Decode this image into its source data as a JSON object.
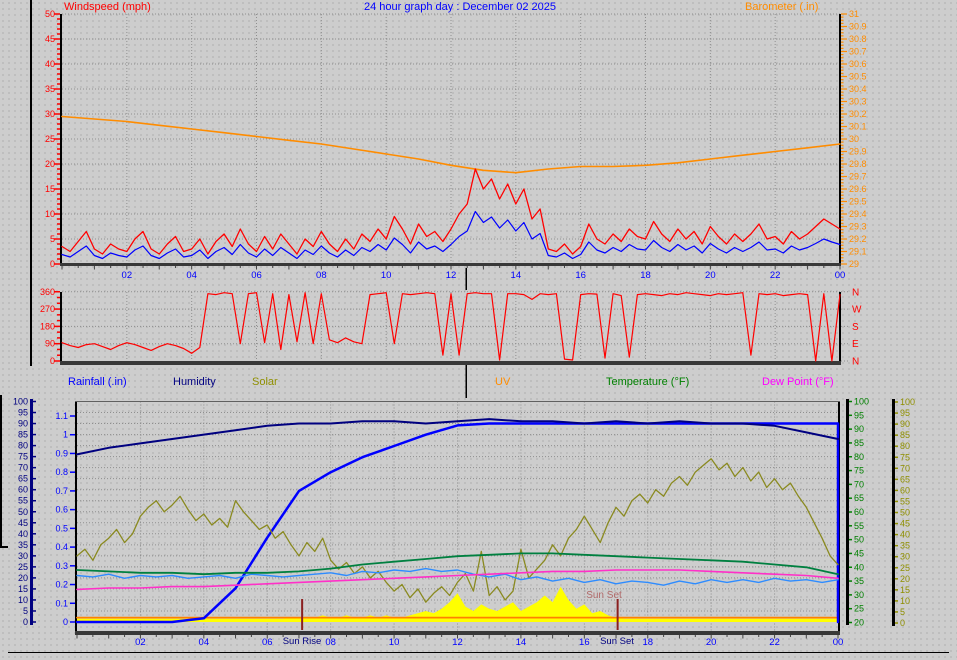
{
  "header": {
    "windspeed_label": "Windspeed (mph)",
    "title": "24 hour graph day : December 02 2025",
    "barometer_label": "Barometer (.in)",
    "title_color": "#0000ff"
  },
  "section_labels": [
    {
      "id": "rainfall",
      "text": "Rainfall (.in)",
      "color": "#0000ff"
    },
    {
      "id": "humidity",
      "text": "Humidity",
      "color": "#000080"
    },
    {
      "id": "solar",
      "text": "Solar",
      "color": "#8f8f00"
    },
    {
      "id": "uv",
      "text": "UV",
      "color": "#ff8c00"
    },
    {
      "id": "temperature",
      "text": "Temperature (°F)",
      "color": "#008000"
    },
    {
      "id": "dewpoint",
      "text": "Dew Point (°F)",
      "color": "#ff00ff"
    }
  ],
  "time_axis": {
    "color": "#0000ff",
    "tick_labels": [
      "02",
      "04",
      "06",
      "08",
      "10",
      "12",
      "14",
      "16",
      "18",
      "20",
      "22",
      "00"
    ],
    "tick_hours": [
      2,
      4,
      6,
      8,
      10,
      12,
      14,
      16,
      18,
      20,
      22,
      24
    ]
  },
  "sun": {
    "rise_label": "Sun Rise",
    "set_label": "Sun Set",
    "inside_set_label": "Sun Set",
    "label_color": "#000080",
    "inside_label_color": "#b06a6a",
    "marker_color": "#8b2020",
    "rise_hour": 7.1,
    "set_hour": 17.05
  },
  "chart_data": [
    {
      "type": "line",
      "title": "24 hour graph day : December 02 2025",
      "x": {
        "range_hours": [
          0,
          24
        ],
        "grid_step_hours": 2
      },
      "axes": {
        "left": {
          "label": "Windspeed (mph)",
          "color": "#ff0000",
          "min": 0,
          "max": 50,
          "ticks": [
            "50",
            "45",
            "40",
            "35",
            "30",
            "25",
            "20",
            "15",
            "10",
            "5",
            "0"
          ]
        },
        "right": {
          "label": "Barometer (.in)",
          "color": "#ff8c00",
          "min": 29,
          "max": 31,
          "ticks": [
            "31",
            "30.9",
            "30.8",
            "30.7",
            "30.6",
            "30.5",
            "30.4",
            "30.3",
            "30.2",
            "30.1",
            "30",
            "29.9",
            "29.8",
            "29.7",
            "29.6",
            "29.5",
            "29.4",
            "29.3",
            "29.2",
            "29.1",
            "29"
          ]
        }
      },
      "series": [
        {
          "name": "barometer",
          "color": "#ff8c00",
          "axis": "right",
          "width": 1.6,
          "values": [
            30.18,
            30.16,
            30.14,
            30.11,
            30.08,
            30.05,
            30.02,
            29.99,
            29.96,
            29.92,
            29.88,
            29.84,
            29.79,
            29.75,
            29.73,
            29.76,
            29.78,
            29.78,
            29.79,
            29.81,
            29.84,
            29.87,
            29.9,
            29.93,
            29.96
          ]
        },
        {
          "name": "windspeed-average",
          "color": "#0000ff",
          "axis": "left",
          "width": 1.2,
          "values": [
            1.9,
            1.4,
            2.5,
            3.6,
            1.7,
            1.1,
            2.2,
            1.7,
            1.4,
            2.8,
            3.6,
            1.7,
            1.1,
            2.2,
            3,
            1.4,
            1.7,
            2.8,
            1.1,
            2.5,
            3.3,
            1.9,
            3.9,
            2.2,
            1.4,
            3,
            1.7,
            3.3,
            2.2,
            1.1,
            2.8,
            1.9,
            3.6,
            2.2,
            1.4,
            2.8,
            1.7,
            3.3,
            2.5,
            3.9,
            2.8,
            5.2,
            3.9,
            2.2,
            4.4,
            3,
            3.6,
            2.5,
            3.9,
            5.5,
            6.6,
            10.5,
            8.3,
            9.4,
            7.2,
            8.8,
            6.6,
            8.3,
            5,
            6.1,
            1.7,
            1.4,
            2.2,
            1.1,
            1.9,
            4.4,
            2.8,
            2.2,
            3.3,
            2.5,
            3.9,
            3,
            2.8,
            4.7,
            3.3,
            2.5,
            3.9,
            2.8,
            3.6,
            2.2,
            4.1,
            3,
            2.2,
            3.3,
            2.5,
            3.3,
            4.4,
            2.8,
            3,
            2.2,
            3.6,
            2.8,
            3.3,
            4.1,
            5,
            4.4,
            3.9
          ]
        },
        {
          "name": "windspeed-gust",
          "color": "#ff0000",
          "axis": "left",
          "width": 1.3,
          "values": [
            3.5,
            2.5,
            4.5,
            6.5,
            3,
            2,
            4,
            3,
            2.5,
            5,
            6.5,
            3,
            2,
            4,
            5.5,
            2.5,
            3,
            5,
            2,
            4.5,
            6,
            3.5,
            7,
            4,
            2.5,
            5.5,
            3,
            6,
            4,
            2,
            5,
            3.5,
            6.5,
            4,
            2.5,
            5,
            3,
            6,
            4.5,
            7,
            5,
            9.5,
            7,
            4,
            8,
            5.5,
            6.5,
            4.5,
            7,
            10,
            12,
            19,
            15,
            17,
            13,
            16,
            12,
            15,
            9,
            11,
            3,
            2.5,
            4,
            2,
            3.5,
            8,
            5,
            4,
            6,
            4.5,
            7,
            5.5,
            5,
            8.5,
            6,
            4.5,
            7,
            5,
            6.5,
            4,
            7.5,
            5.5,
            4,
            6,
            4.5,
            6,
            8,
            5,
            5.5,
            4,
            6.5,
            5,
            6,
            7.5,
            9,
            8,
            7
          ]
        }
      ]
    },
    {
      "type": "line",
      "x": {
        "range_hours": [
          0,
          24
        ],
        "grid_step_hours": 2
      },
      "axes": {
        "left": {
          "color": "#ff0000",
          "min": 0,
          "max": 360,
          "ticks": [
            "360",
            "270",
            "180",
            "90",
            "0"
          ],
          "tick_values": [
            360,
            270,
            180,
            90,
            0
          ]
        },
        "right": {
          "color": "#ff0000",
          "ticks": [
            "N",
            "W",
            "S",
            "E",
            "N"
          ],
          "tick_values": [
            360,
            270,
            180,
            90,
            0
          ]
        }
      },
      "series": [
        {
          "name": "wind-direction",
          "color": "#ff0000",
          "width": 1.2,
          "values": [
            95,
            80,
            70,
            85,
            90,
            75,
            60,
            80,
            95,
            85,
            70,
            55,
            75,
            90,
            80,
            65,
            40,
            70,
            350,
            345,
            355,
            350,
            90,
            350,
            355,
            95,
            350,
            60,
            345,
            100,
            355,
            90,
            350,
            110,
            95,
            120,
            100,
            90,
            345,
            350,
            355,
            90,
            350,
            345,
            350,
            355,
            350,
            30,
            350,
            30,
            350,
            355,
            350,
            350,
            5,
            350,
            350,
            345,
            320,
            350,
            345,
            350,
            10,
            5,
            345,
            350,
            348,
            15,
            350,
            340,
            20,
            345,
            350,
            345,
            340,
            350,
            345,
            355,
            350,
            345,
            340,
            350,
            345,
            350,
            355,
            30,
            350,
            345,
            350,
            340,
            345,
            350,
            345,
            0,
            350,
            0,
            345
          ]
        }
      ]
    },
    {
      "type": "line",
      "x": {
        "range_hours": [
          0,
          24
        ],
        "grid_step_hours": 2
      },
      "axes": {
        "humidity_left": {
          "color": "#000080",
          "min": 0,
          "max": 100,
          "ticks": [
            "100",
            "95",
            "90",
            "85",
            "80",
            "75",
            "70",
            "65",
            "60",
            "55",
            "50",
            "45",
            "40",
            "35",
            "30",
            "25",
            "20",
            "15",
            "10",
            "5",
            "0"
          ]
        },
        "rainfall_left": {
          "color": "#0000ff",
          "min": 0,
          "max": 1.1,
          "ticks": [
            "1.1",
            "1",
            "0.9",
            "0.8",
            "0.7",
            "0.6",
            "0.5",
            "0.4",
            "0.3",
            "0.2",
            "0.1",
            "0"
          ]
        },
        "temperature_right": {
          "color": "#008000",
          "min": 20,
          "max": 100,
          "ticks": [
            "100",
            "95",
            "90",
            "85",
            "80",
            "75",
            "70",
            "65",
            "60",
            "55",
            "50",
            "45",
            "40",
            "35",
            "30",
            "25",
            "20"
          ]
        },
        "solar_right": {
          "color": "#8f8f00",
          "min": 0,
          "max": 100,
          "ticks": [
            "100",
            "95",
            "90",
            "85",
            "80",
            "75",
            "70",
            "65",
            "60",
            "55",
            "50",
            "45",
            "40",
            "35",
            "30",
            "25",
            "20",
            "15",
            "10",
            "5",
            "0"
          ]
        }
      },
      "series": [
        {
          "name": "solar-yellow-area",
          "color": "#ffff00",
          "scale": "pct",
          "area": true,
          "values": [
            1.5,
            1.5,
            1.5,
            1.5,
            1.5,
            1.5,
            1.5,
            1.5,
            1.5,
            1.5,
            1.5,
            1.5,
            1.5,
            1.5,
            1.5,
            1.5,
            1.5,
            1.5,
            1.5,
            1.5,
            1.5,
            1.5,
            1.5,
            1.5,
            1.5,
            1.5,
            1.5,
            2,
            2,
            1.5,
            2,
            3,
            2,
            2,
            3,
            2,
            2,
            3,
            2,
            3,
            2,
            2,
            3,
            4,
            5,
            4,
            6,
            9,
            13,
            7,
            5,
            8,
            6,
            5,
            7,
            9,
            5,
            7,
            9,
            12,
            9,
            16,
            10,
            6,
            8,
            4,
            5,
            3,
            2,
            1.5,
            1.5,
            1.5,
            1.5,
            1.5,
            1.5,
            1.5,
            1.5,
            1.5,
            1.5,
            1.5,
            1.5,
            1.5,
            1.5,
            1.5,
            1.5,
            1.5,
            1.5,
            1.5,
            1.5,
            1.5,
            1.5,
            1.5,
            1.5,
            1.5,
            1.5,
            1.5,
            1.5
          ]
        },
        {
          "name": "uv",
          "color": "#ff8000",
          "scale": "pct",
          "width": 1.8,
          "values": [
            2,
            2
          ]
        },
        {
          "name": "rainfall-accumulated",
          "color": "#0000ff",
          "scale": "rain",
          "width": 2.5,
          "close_right": true,
          "values": [
            0,
            0,
            0,
            0,
            0.02,
            0.18,
            0.45,
            0.7,
            0.8,
            0.88,
            0.94,
            1.0,
            1.05,
            1.06,
            1.06,
            1.06,
            1.06,
            1.06,
            1.06,
            1.06,
            1.06,
            1.06,
            1.06,
            1.06,
            1.06
          ]
        },
        {
          "name": "humidity",
          "color": "#000080",
          "scale": "pct",
          "width": 2,
          "values": [
            76,
            79,
            81,
            83,
            85,
            87,
            89,
            90,
            90,
            91,
            91,
            90,
            91,
            92,
            91,
            91,
            90,
            91,
            90,
            91,
            90,
            90,
            89,
            86,
            83
          ]
        },
        {
          "name": "solar-olive-line",
          "color": "#8a8a20",
          "scale": "pct",
          "width": 1.3,
          "values": [
            30,
            33,
            28,
            35,
            38,
            42,
            36,
            40,
            48,
            52,
            55,
            50,
            53,
            57,
            51,
            46,
            49,
            44,
            47,
            43,
            55,
            50,
            46,
            42,
            44,
            38,
            41,
            35,
            30,
            36,
            32,
            38,
            28,
            24,
            27,
            22,
            25,
            20,
            23,
            18,
            14,
            17,
            11,
            15,
            9,
            13,
            16,
            12,
            18,
            22,
            14,
            32,
            12,
            16,
            10,
            14,
            33,
            20,
            24,
            28,
            35,
            30,
            38,
            42,
            48,
            42,
            36,
            45,
            52,
            48,
            55,
            58,
            54,
            60,
            57,
            63,
            66,
            62,
            68,
            71,
            74,
            69,
            72,
            66,
            70,
            64,
            68,
            61,
            65,
            60,
            63,
            57,
            52,
            45,
            38,
            30,
            26
          ]
        },
        {
          "name": "unlabeled-light-blue",
          "color": "#2e8cff",
          "scale": "temp",
          "width": 1.4,
          "values": [
            37,
            36.5,
            37.5,
            36,
            37,
            36.5,
            37,
            36,
            36.5,
            37,
            36,
            37.5,
            37,
            36.5,
            37,
            37.5,
            38,
            37,
            38.5,
            38,
            39,
            38.5,
            39.5,
            38.5,
            39,
            37.5,
            36.5,
            37.5,
            35.5,
            36.5,
            35,
            36,
            34.5,
            35.5,
            34,
            35,
            34.5,
            33.5,
            35,
            34,
            35.5,
            34.5,
            35.5,
            34.5,
            36,
            35,
            35.5,
            34.5,
            35.5
          ]
        },
        {
          "name": "dew-point",
          "color": "#ff30c8",
          "scale": "temp",
          "width": 1.6,
          "values": [
            32,
            32.5,
            32.5,
            33,
            33,
            33.5,
            34,
            34.5,
            35,
            35.5,
            36,
            36.5,
            37,
            37.5,
            38,
            38.5,
            38.5,
            39,
            39,
            39,
            38.5,
            38,
            37.5,
            37,
            36
          ]
        },
        {
          "name": "temperature",
          "color": "#008040",
          "scale": "temp",
          "width": 1.8,
          "values": [
            39,
            38.5,
            38,
            38,
            37.5,
            38,
            38,
            38.5,
            39.5,
            41,
            42,
            43,
            44,
            44.5,
            45,
            45,
            44.5,
            44,
            43.5,
            43,
            42.5,
            42,
            41,
            40,
            37.5
          ]
        }
      ]
    }
  ]
}
